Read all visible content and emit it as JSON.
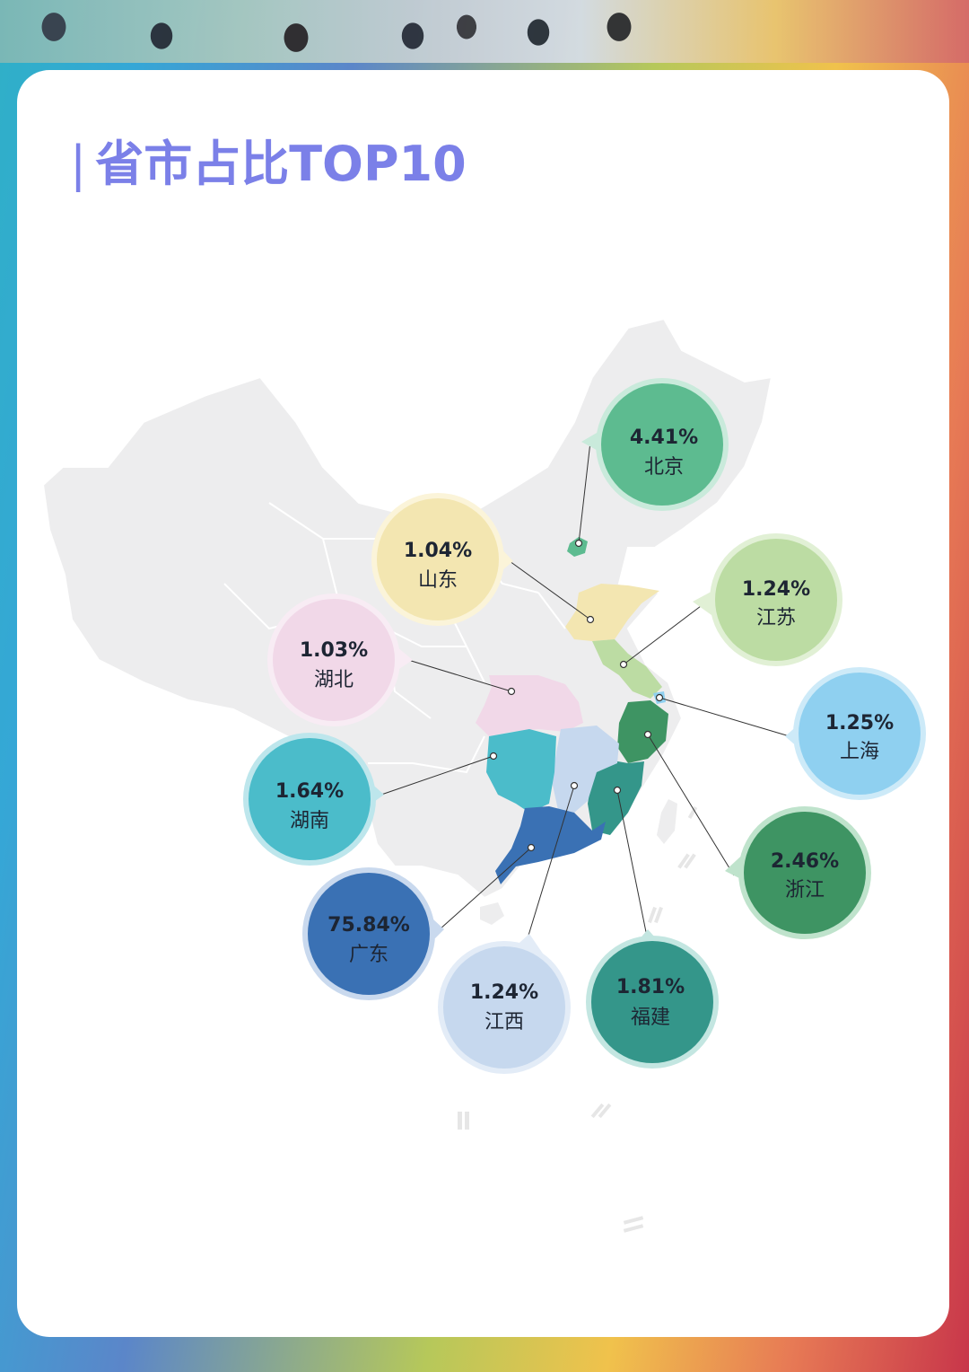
{
  "title": "省市占比TOP10",
  "title_bar": "|",
  "provinces": [
    {
      "name": "北京",
      "value": "4.41%",
      "color": "#5dbb90",
      "ring": "#c9eadb"
    },
    {
      "name": "山东",
      "value": "1.04%",
      "color": "#f3e6b1",
      "ring": "#fbf4d9"
    },
    {
      "name": "江苏",
      "value": "1.24%",
      "color": "#bcdca3",
      "ring": "#e1f0d5"
    },
    {
      "name": "湖北",
      "value": "1.03%",
      "color": "#f1d8e8",
      "ring": "#f8ecf4"
    },
    {
      "name": "上海",
      "value": "1.25%",
      "color": "#8fd0f0",
      "ring": "#cdeaf8"
    },
    {
      "name": "湖南",
      "value": "1.64%",
      "color": "#4bbcca",
      "ring": "#bde6ec"
    },
    {
      "name": "浙江",
      "value": "2.46%",
      "color": "#3e9463",
      "ring": "#bfe3cc"
    },
    {
      "name": "广东",
      "value": "75.84%",
      "color": "#3a71b4",
      "ring": "#c9d9ee"
    },
    {
      "name": "江西",
      "value": "1.24%",
      "color": "#c6d8ee",
      "ring": "#e3ecf7"
    },
    {
      "name": "福建",
      "value": "1.81%",
      "color": "#34968a",
      "ring": "#c3e6e1"
    }
  ]
}
